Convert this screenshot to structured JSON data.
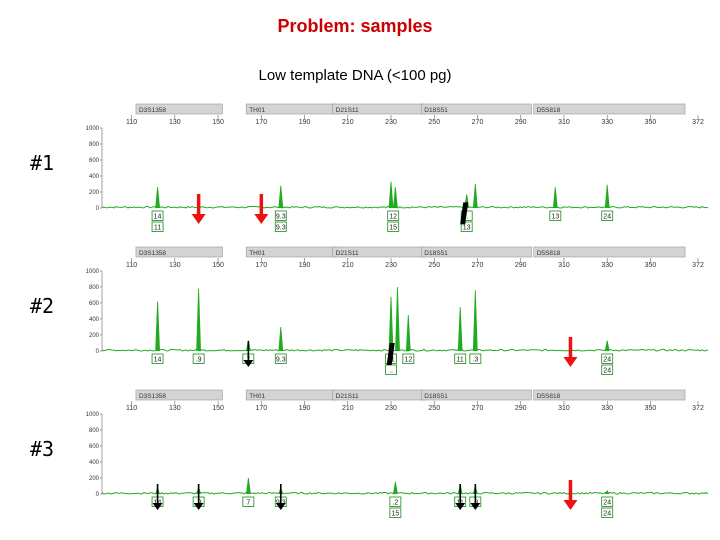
{
  "title": "Problem: samples",
  "subtitle": "Low template DNA (<100 pg)",
  "colors": {
    "title": "#cc0000",
    "trace": "#22aa22",
    "allele_box": "#1a8a1a",
    "red_arrow": "#ee1111",
    "black_arrow": "#000000",
    "marker_bar": "#d4d4d4"
  },
  "chart_data": {
    "type": "line",
    "x_range": [
      100,
      372
    ],
    "y_range": [
      0,
      1000
    ],
    "x_ticks": [
      "110",
      "130",
      "150",
      "170",
      "190",
      "210",
      "230",
      "250",
      "270",
      "290",
      "310",
      "330",
      "350",
      "372"
    ],
    "y_ticks": [
      "1000",
      "800",
      "600",
      "400",
      "200",
      "0"
    ],
    "markers": [
      {
        "name": "D3S1358",
        "x_start": 112,
        "x_end": 152
      },
      {
        "name": "TH01",
        "x_start": 163,
        "x_end": 205
      },
      {
        "name": "D21S11",
        "x_start": 203,
        "x_end": 246
      },
      {
        "name": "D18S51",
        "x_start": 244,
        "x_end": 295
      },
      {
        "name": "D5S818",
        "x_start": 296,
        "x_end": 366
      }
    ],
    "samples": [
      {
        "label": "#1",
        "peaks": [
          {
            "x": 122,
            "h": 260
          },
          {
            "x": 179,
            "h": 280
          },
          {
            "x": 230,
            "h": 330
          },
          {
            "x": 232,
            "h": 260
          },
          {
            "x": 265,
            "h": 170
          },
          {
            "x": 269,
            "h": 300
          },
          {
            "x": 306,
            "h": 260
          },
          {
            "x": 330,
            "h": 290
          }
        ],
        "alleles": [
          {
            "x": 122,
            "rows": [
              "14",
              "11"
            ]
          },
          {
            "x": 179,
            "rows": [
              "9.3",
              "9.3"
            ]
          },
          {
            "x": 231,
            "rows": [
              "12",
              "15"
            ]
          },
          {
            "x": 265,
            "rows": [
              "..",
              "13"
            ]
          },
          {
            "x": 306,
            "rows": [
              "13"
            ]
          },
          {
            "x": 330,
            "rows": [
              "24"
            ]
          }
        ],
        "arrows": [
          {
            "x": 141,
            "h": 250,
            "color": "red"
          },
          {
            "x": 170,
            "h": 250,
            "color": "red"
          },
          {
            "x": 263,
            "h": 220,
            "color": "black",
            "thick": true
          }
        ]
      },
      {
        "label": "#2",
        "peaks": [
          {
            "x": 122,
            "h": 620
          },
          {
            "x": 141,
            "h": 780
          },
          {
            "x": 164,
            "h": 130
          },
          {
            "x": 179,
            "h": 300
          },
          {
            "x": 230,
            "h": 680
          },
          {
            "x": 233,
            "h": 800
          },
          {
            "x": 238,
            "h": 450
          },
          {
            "x": 262,
            "h": 550
          },
          {
            "x": 269,
            "h": 760
          },
          {
            "x": 330,
            "h": 130
          }
        ],
        "alleles": [
          {
            "x": 122,
            "rows": [
              "14"
            ]
          },
          {
            "x": 141,
            "rows": [
              ".9"
            ]
          },
          {
            "x": 164,
            "rows": [
              "7"
            ]
          },
          {
            "x": 179,
            "rows": [
              "9.3"
            ]
          },
          {
            "x": 230,
            "rows": [
              "11",
              ".."
            ]
          },
          {
            "x": 238,
            "rows": [
              "12"
            ]
          },
          {
            "x": 262,
            "rows": [
              "11"
            ]
          },
          {
            "x": 269,
            "rows": [
              ".3"
            ]
          },
          {
            "x": 330,
            "rows": [
              "24",
              "24"
            ]
          }
        ],
        "arrows": [
          {
            "x": 164,
            "h": 250,
            "color": "black"
          },
          {
            "x": 229,
            "h": 250,
            "color": "black",
            "thick": true
          },
          {
            "x": 313,
            "h": 250,
            "color": "red"
          }
        ]
      },
      {
        "label": "#3",
        "peaks": [
          {
            "x": 122,
            "h": 80
          },
          {
            "x": 141,
            "h": 90
          },
          {
            "x": 164,
            "h": 200
          },
          {
            "x": 179,
            "h": 80
          },
          {
            "x": 232,
            "h": 150
          },
          {
            "x": 262,
            "h": 120
          },
          {
            "x": 269,
            "h": 100
          },
          {
            "x": 330,
            "h": 40
          }
        ],
        "alleles": [
          {
            "x": 122,
            "rows": [
              "14"
            ]
          },
          {
            "x": 141,
            "rows": [
              ".9"
            ]
          },
          {
            "x": 164,
            "rows": [
              "7"
            ]
          },
          {
            "x": 179,
            "rows": [
              "9.3"
            ]
          },
          {
            "x": 232,
            "rows": [
              ".2",
              "15"
            ]
          },
          {
            "x": 262,
            "rows": [
              "11"
            ]
          },
          {
            "x": 269,
            "rows": [
              ".3"
            ]
          },
          {
            "x": 330,
            "rows": [
              "24",
              "24"
            ]
          }
        ],
        "arrows": [
          {
            "x": 122,
            "h": 250,
            "color": "black"
          },
          {
            "x": 141,
            "h": 250,
            "color": "black"
          },
          {
            "x": 179,
            "h": 250,
            "color": "black"
          },
          {
            "x": 262,
            "h": 250,
            "color": "black"
          },
          {
            "x": 269,
            "h": 250,
            "color": "black"
          },
          {
            "x": 313,
            "h": 250,
            "color": "red"
          }
        ]
      }
    ]
  }
}
